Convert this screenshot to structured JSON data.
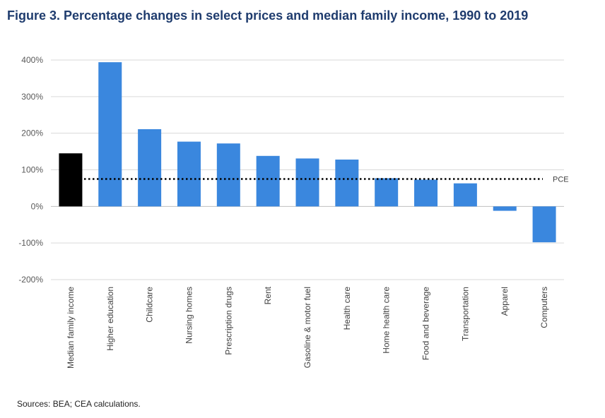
{
  "title": "Figure 3. Percentage changes in select prices and median family income, 1990 to 2019",
  "source": "Sources: BEA; CEA calculations.",
  "colors": {
    "highlight": "#000000",
    "bars": "#3a87de",
    "grid": "#d9d9d9",
    "title": "#1f3c6e"
  },
  "chart_data": {
    "type": "bar",
    "title": "Figure 3. Percentage changes in select prices and median family income, 1990 to 2019",
    "xlabel": "",
    "ylabel": "",
    "ylim": [
      -200,
      400
    ],
    "yticks": [
      400,
      300,
      200,
      100,
      0,
      -100,
      -200
    ],
    "ytick_labels": [
      "400%",
      "300%",
      "200%",
      "100%",
      "0%",
      "-100%",
      "-200%"
    ],
    "grid": true,
    "legend": "none",
    "categories": [
      "Median family income",
      "Higher education",
      "Childcare",
      "Nursing homes",
      "Prescription drugs",
      "Rent",
      "Gasoline & motor fuel",
      "Health care",
      "Home health care",
      "Food and beverage",
      "Transportation",
      "Apparel",
      "Computers"
    ],
    "values": [
      145,
      394,
      211,
      177,
      172,
      138,
      131,
      128,
      77,
      73,
      63,
      -12,
      -98
    ],
    "highlight_index": 0,
    "reference_line": {
      "label": "PCE",
      "value": 75,
      "style": "dotted"
    }
  }
}
